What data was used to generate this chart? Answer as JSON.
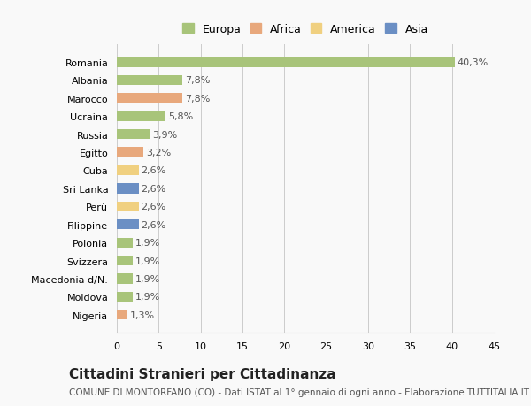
{
  "countries": [
    "Romania",
    "Albania",
    "Marocco",
    "Ucraina",
    "Russia",
    "Egitto",
    "Cuba",
    "Sri Lanka",
    "Perù",
    "Filippine",
    "Polonia",
    "Svizzera",
    "Macedonia d/N.",
    "Moldova",
    "Nigeria"
  ],
  "values": [
    40.3,
    7.8,
    7.8,
    5.8,
    3.9,
    3.2,
    2.6,
    2.6,
    2.6,
    2.6,
    1.9,
    1.9,
    1.9,
    1.9,
    1.3
  ],
  "labels": [
    "40,3%",
    "7,8%",
    "7,8%",
    "5,8%",
    "3,9%",
    "3,2%",
    "2,6%",
    "2,6%",
    "2,6%",
    "2,6%",
    "1,9%",
    "1,9%",
    "1,9%",
    "1,9%",
    "1,3%"
  ],
  "colors": [
    "#a8c47a",
    "#a8c47a",
    "#e8a87c",
    "#a8c47a",
    "#a8c47a",
    "#e8a87c",
    "#f0d080",
    "#6b8fc4",
    "#f0d080",
    "#6b8fc4",
    "#a8c47a",
    "#a8c47a",
    "#a8c47a",
    "#a8c47a",
    "#e8a87c"
  ],
  "legend_labels": [
    "Europa",
    "Africa",
    "America",
    "Asia"
  ],
  "legend_colors": [
    "#a8c47a",
    "#e8a87c",
    "#f0d080",
    "#6b8fc4"
  ],
  "title": "Cittadini Stranieri per Cittadinanza",
  "subtitle": "COMUNE DI MONTORFANO (CO) - Dati ISTAT al 1° gennaio di ogni anno - Elaborazione TUTTITALIA.IT",
  "xlim": [
    0,
    45
  ],
  "xticks": [
    0,
    5,
    10,
    15,
    20,
    25,
    30,
    35,
    40,
    45
  ],
  "background_color": "#f9f9f9",
  "grid_color": "#cccccc",
  "bar_height": 0.55,
  "title_fontsize": 11,
  "subtitle_fontsize": 7.5,
  "label_fontsize": 8,
  "tick_fontsize": 8,
  "legend_fontsize": 9
}
